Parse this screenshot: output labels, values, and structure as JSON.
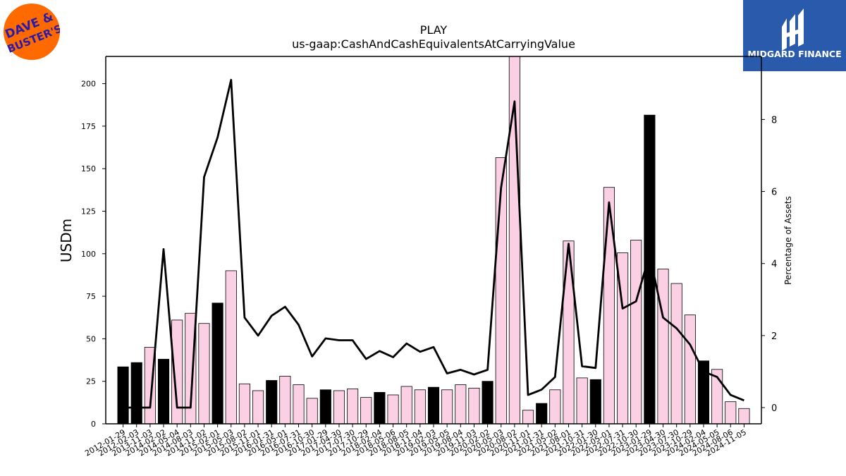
{
  "brand": {
    "left_logo_text": "DAVE & BUSTER'S",
    "right_logo_text": "MIDGARD FINANCE"
  },
  "colors": {
    "highlight_bar": "#000000",
    "normal_bar": "#fbcfe4",
    "line": "#000000",
    "left_logo_bg": "#ff6a00",
    "left_logo_text": "#2a1aa8",
    "right_logo_bg": "#2a5aab"
  },
  "chart_data": {
    "type": "bar",
    "title": "PLAY",
    "subtitle": "us-gaap:CashAndCashEquivalentsAtCarryingValue",
    "ylabel": "USDm",
    "y2label": "Percentage of Assets",
    "ylim": [
      0,
      216
    ],
    "y2lim": [
      -0.45,
      9.75
    ],
    "yticks": [
      0,
      25,
      50,
      75,
      100,
      125,
      150,
      175,
      200
    ],
    "y2ticks": [
      0,
      2,
      4,
      6,
      8
    ],
    "categories": [
      "2012-01-29",
      "2012-02-03",
      "2013-11-03",
      "2014-02-02",
      "2014-05-04",
      "2014-08-03",
      "2014-11-02",
      "2015-02-01",
      "2015-05-03",
      "2015-08-02",
      "2015-11-01",
      "2016-01-31",
      "2016-05-01",
      "2016-07-31",
      "2016-10-30",
      "2017-01-29",
      "2017-04-30",
      "2017-07-30",
      "2017-10-29",
      "2018-02-04",
      "2018-05-06",
      "2018-08-05",
      "2018-11-04",
      "2019-02-03",
      "2019-05-05",
      "2019-08-04",
      "2019-11-03",
      "2020-02-02",
      "2020-05-03",
      "2020-08-02",
      "2020-11-01",
      "2021-01-31",
      "2021-05-02",
      "2021-08-01",
      "2021-10-31",
      "2022-01-30",
      "2022-05-01",
      "2022-07-31",
      "2022-10-30",
      "2023-01-29",
      "2023-04-30",
      "2023-07-30",
      "2023-10-29",
      "2024-02-04",
      "2024-05-05",
      "2024-08-06",
      "2024-11-05"
    ],
    "series": [
      {
        "type": "bar",
        "values": [
          33.5,
          36,
          45,
          38,
          61,
          65,
          59,
          71,
          90,
          23.5,
          19.5,
          25.5,
          28,
          23,
          15,
          20,
          19.5,
          20.5,
          15.5,
          18.5,
          17,
          22,
          20,
          21.5,
          20,
          23,
          21,
          25,
          156.5,
          216,
          8,
          12,
          20,
          107.5,
          27,
          26,
          139,
          100.5,
          108,
          181.5,
          91,
          82.5,
          64,
          37,
          32,
          13,
          9
        ],
        "highlight": [
          true,
          true,
          false,
          true,
          false,
          false,
          false,
          true,
          false,
          false,
          false,
          true,
          false,
          false,
          false,
          true,
          false,
          false,
          false,
          true,
          false,
          false,
          false,
          true,
          false,
          false,
          false,
          true,
          false,
          false,
          false,
          true,
          false,
          false,
          false,
          true,
          false,
          false,
          false,
          true,
          false,
          false,
          false,
          true,
          false,
          false,
          false
        ]
      },
      {
        "type": "line",
        "axis": "right",
        "values": [
          0,
          0,
          0,
          4.4,
          0,
          0,
          6.4,
          7.5,
          9.1,
          2.5,
          2.0,
          2.55,
          2.8,
          2.3,
          1.42,
          1.92,
          1.87,
          1.87,
          1.35,
          1.57,
          1.4,
          1.78,
          1.55,
          1.68,
          0.95,
          1.05,
          0.92,
          1.05,
          6.1,
          8.5,
          0.35,
          0.5,
          0.85,
          4.55,
          1.15,
          1.1,
          5.7,
          2.75,
          2.95,
          4.25,
          2.5,
          2.2,
          1.75,
          1.0,
          0.85,
          0.35,
          0.2
        ]
      }
    ]
  }
}
